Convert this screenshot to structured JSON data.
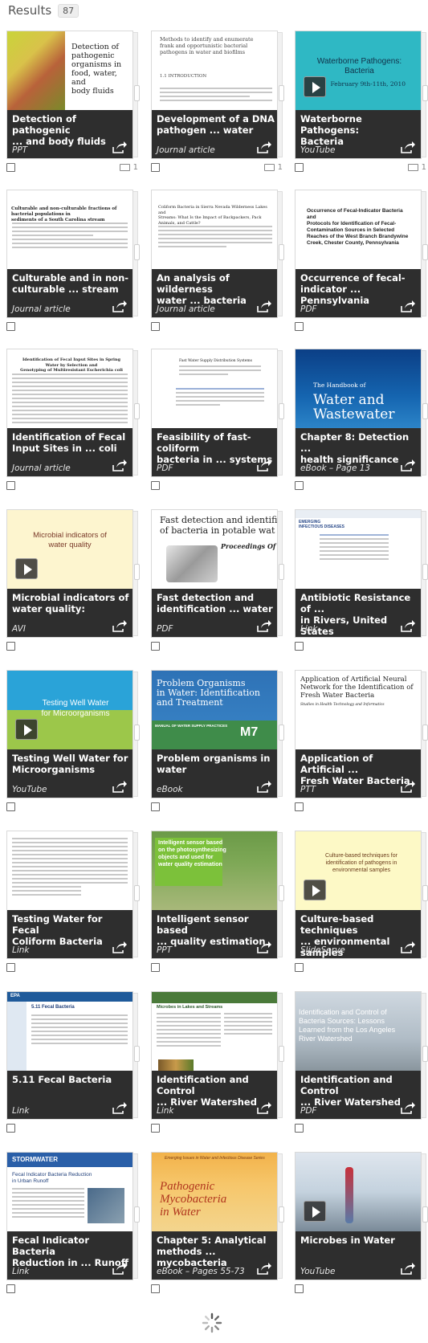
{
  "header": {
    "title": "Results",
    "count": "87"
  },
  "colors": {
    "overlay": "#1c1c1c",
    "checkbox_border": "#666666"
  },
  "items": [
    {
      "name_line1": "Detection of pathogenic",
      "name_line2": "... and body fluids",
      "type": "PPT",
      "folder_count": "1",
      "thumb_lines": [
        "Detection of",
        "pathogenic",
        "organisms in",
        "food, water, and",
        "body fluids"
      ]
    },
    {
      "name_line1": "Development of a DNA",
      "name_line2": "pathogen ... water",
      "type": "Journal article",
      "folder_count": "1",
      "thumb_lines": [
        "Methods to identify and enumerate",
        "frank and opportunistic bacterial",
        "pathogens in water and biofilms",
        "1.1 INTRODUCTION"
      ]
    },
    {
      "name_line1": "Waterborne Pathogens:",
      "name_line2": "Bacteria",
      "type": "YouTube",
      "folder_count": "1",
      "thumb_lines": [
        "Waterborne Pathogens:",
        "Bacteria",
        "February 9th-11th, 2010"
      ]
    },
    {
      "name_line1": "Culturable and in non-",
      "name_line2": "culturable ... stream",
      "type": "Journal article",
      "thumb_lines": [
        "Culturable and non-culturable fractions of bacterial populations in",
        "sediments of a South Carolina stream"
      ]
    },
    {
      "name_line1": "An analysis of wilderness",
      "name_line2": "water ... bacteria",
      "type": "Journal article",
      "thumb_lines": [
        "Coliform Bacteria in Sierra Nevada Wilderness Lakes and",
        "Streams: What Is the Impact of Backpackers, Pack",
        "Animals, and Cattle?"
      ]
    },
    {
      "name_line1": "Occurrence of fecal-",
      "name_line2": "indicator ... Pennsylvania",
      "type": "PDF",
      "thumb_lines": [
        "Occurrence of Fecal-Indicator Bacteria and",
        "Protocols for Identification of Fecal-",
        "Contamination Sources in Selected",
        "Reaches of the West Branch Brandywine",
        "Creek, Chester County, Pennsylvania"
      ]
    },
    {
      "name_line1": "Identification of Fecal",
      "name_line2": "Input Sites in ... coli",
      "type": "Journal article",
      "thumb_lines": [
        "Identification of Fecal Input Sites in Spring Water by Selection and",
        "Genotyping of Multiresistant Escherichia coli"
      ]
    },
    {
      "name_line1": "Feasibility of fast-coliform",
      "name_line2": "bacteria in ... systems",
      "type": "PDF",
      "thumb_lines": [
        "Fast Water Supply Distribution Systems"
      ]
    },
    {
      "name_line1": "Chapter 8: Detection ...",
      "name_line2": "health significance",
      "type": "eBook – Page 13",
      "thumb_lines": [
        "The Handbook of",
        "Water and",
        "Wastewater"
      ]
    },
    {
      "name_line1": "Microbial indicators of",
      "name_line2": "water quality:",
      "type": "AVI",
      "thumb_lines": [
        "Microbial indicators of",
        "water quality"
      ]
    },
    {
      "name_line1": "Fast detection and",
      "name_line2": "identification ... water",
      "type": "PDF",
      "thumb_lines": [
        "Fast detection and identifi",
        "of bacteria in potable wat",
        "Proceedings Of S"
      ]
    },
    {
      "name_line1": "Antibiotic Resistance of ...",
      "name_line2": "in Rivers, United States",
      "type": "Link",
      "thumb_lines": [
        "EMERGING",
        "INFECTIOUS DISEASES"
      ]
    },
    {
      "name_line1": "Testing Well Water for",
      "name_line2": "Microorganisms",
      "type": "YouTube",
      "thumb_lines": [
        "Testing Well Water",
        "for Microorganisms"
      ]
    },
    {
      "name_line1": "Problem organisms in",
      "name_line2": "water",
      "type": "eBook",
      "thumb_lines": [
        "Problem Organisms",
        "in Water: Identification",
        "and Treatment",
        "MANUAL OF WATER SUPPLY PRACTICES",
        "M7"
      ]
    },
    {
      "name_line1": "Application of Artificial ...",
      "name_line2": "Fresh Water Bacteria",
      "type": "PTT",
      "thumb_lines": [
        "Application of Artificial Neural",
        "Network for the Identification of",
        "Fresh Water Bacteria",
        "Studies in Health Technology and Informatics"
      ]
    },
    {
      "name_line1": "Testing Water for Fecal",
      "name_line2": "Coliform Bacteria",
      "type": "Link",
      "thumb_lines": []
    },
    {
      "name_line1": "Intelligent sensor based",
      "name_line2": "... quality estimation",
      "type": "PPT",
      "thumb_lines": [
        "Intelligent sensor based",
        "on the photosynthesizing",
        "objects and used for",
        "water quality estimation"
      ]
    },
    {
      "name_line1": "Culture-based techniques",
      "name_line2": "... environmental samples",
      "type": "SlideServe",
      "thumb_lines": [
        "Culture-based techniques for identification of pathogens in",
        "environmental samples"
      ]
    },
    {
      "name_line1": "5.11 Fecal Bacteria",
      "name_line2": "",
      "type": "Link",
      "thumb_lines": [
        "EPA",
        "5.11 Fecal Bacteria"
      ]
    },
    {
      "name_line1": "Identification and Control",
      "name_line2": "... River Watershed",
      "type": "Link",
      "thumb_lines": [
        "Microbes in Lakes and Streams"
      ]
    },
    {
      "name_line1": "Identification and Control",
      "name_line2": "... River Watershed",
      "type": "PDF",
      "thumb_lines": [
        "Identification and Control of",
        "Bacteria Sources: Lessons",
        "Learned from the Los Angeles",
        "River Watershed"
      ]
    },
    {
      "name_line1": "Fecal Indicator Bacteria",
      "name_line2": "Reduction in ... Runoff",
      "type": "Link",
      "thumb_lines": [
        "STORMWATER",
        "Fecal Indicator Bacteria Reduction",
        "in Urban Runoff"
      ]
    },
    {
      "name_line1": "Chapter 5: Analytical",
      "name_line2": "methods ... mycobacteria",
      "type": "eBook – Pages 55-73",
      "thumb_lines": [
        "Emerging Issues in Water and Infectious Disease Series",
        "Pathogenic",
        "Mycobacteria",
        "in Water"
      ]
    },
    {
      "name_line1": "Microbes in Water",
      "name_line2": "",
      "type": "YouTube",
      "thumb_lines": []
    }
  ]
}
